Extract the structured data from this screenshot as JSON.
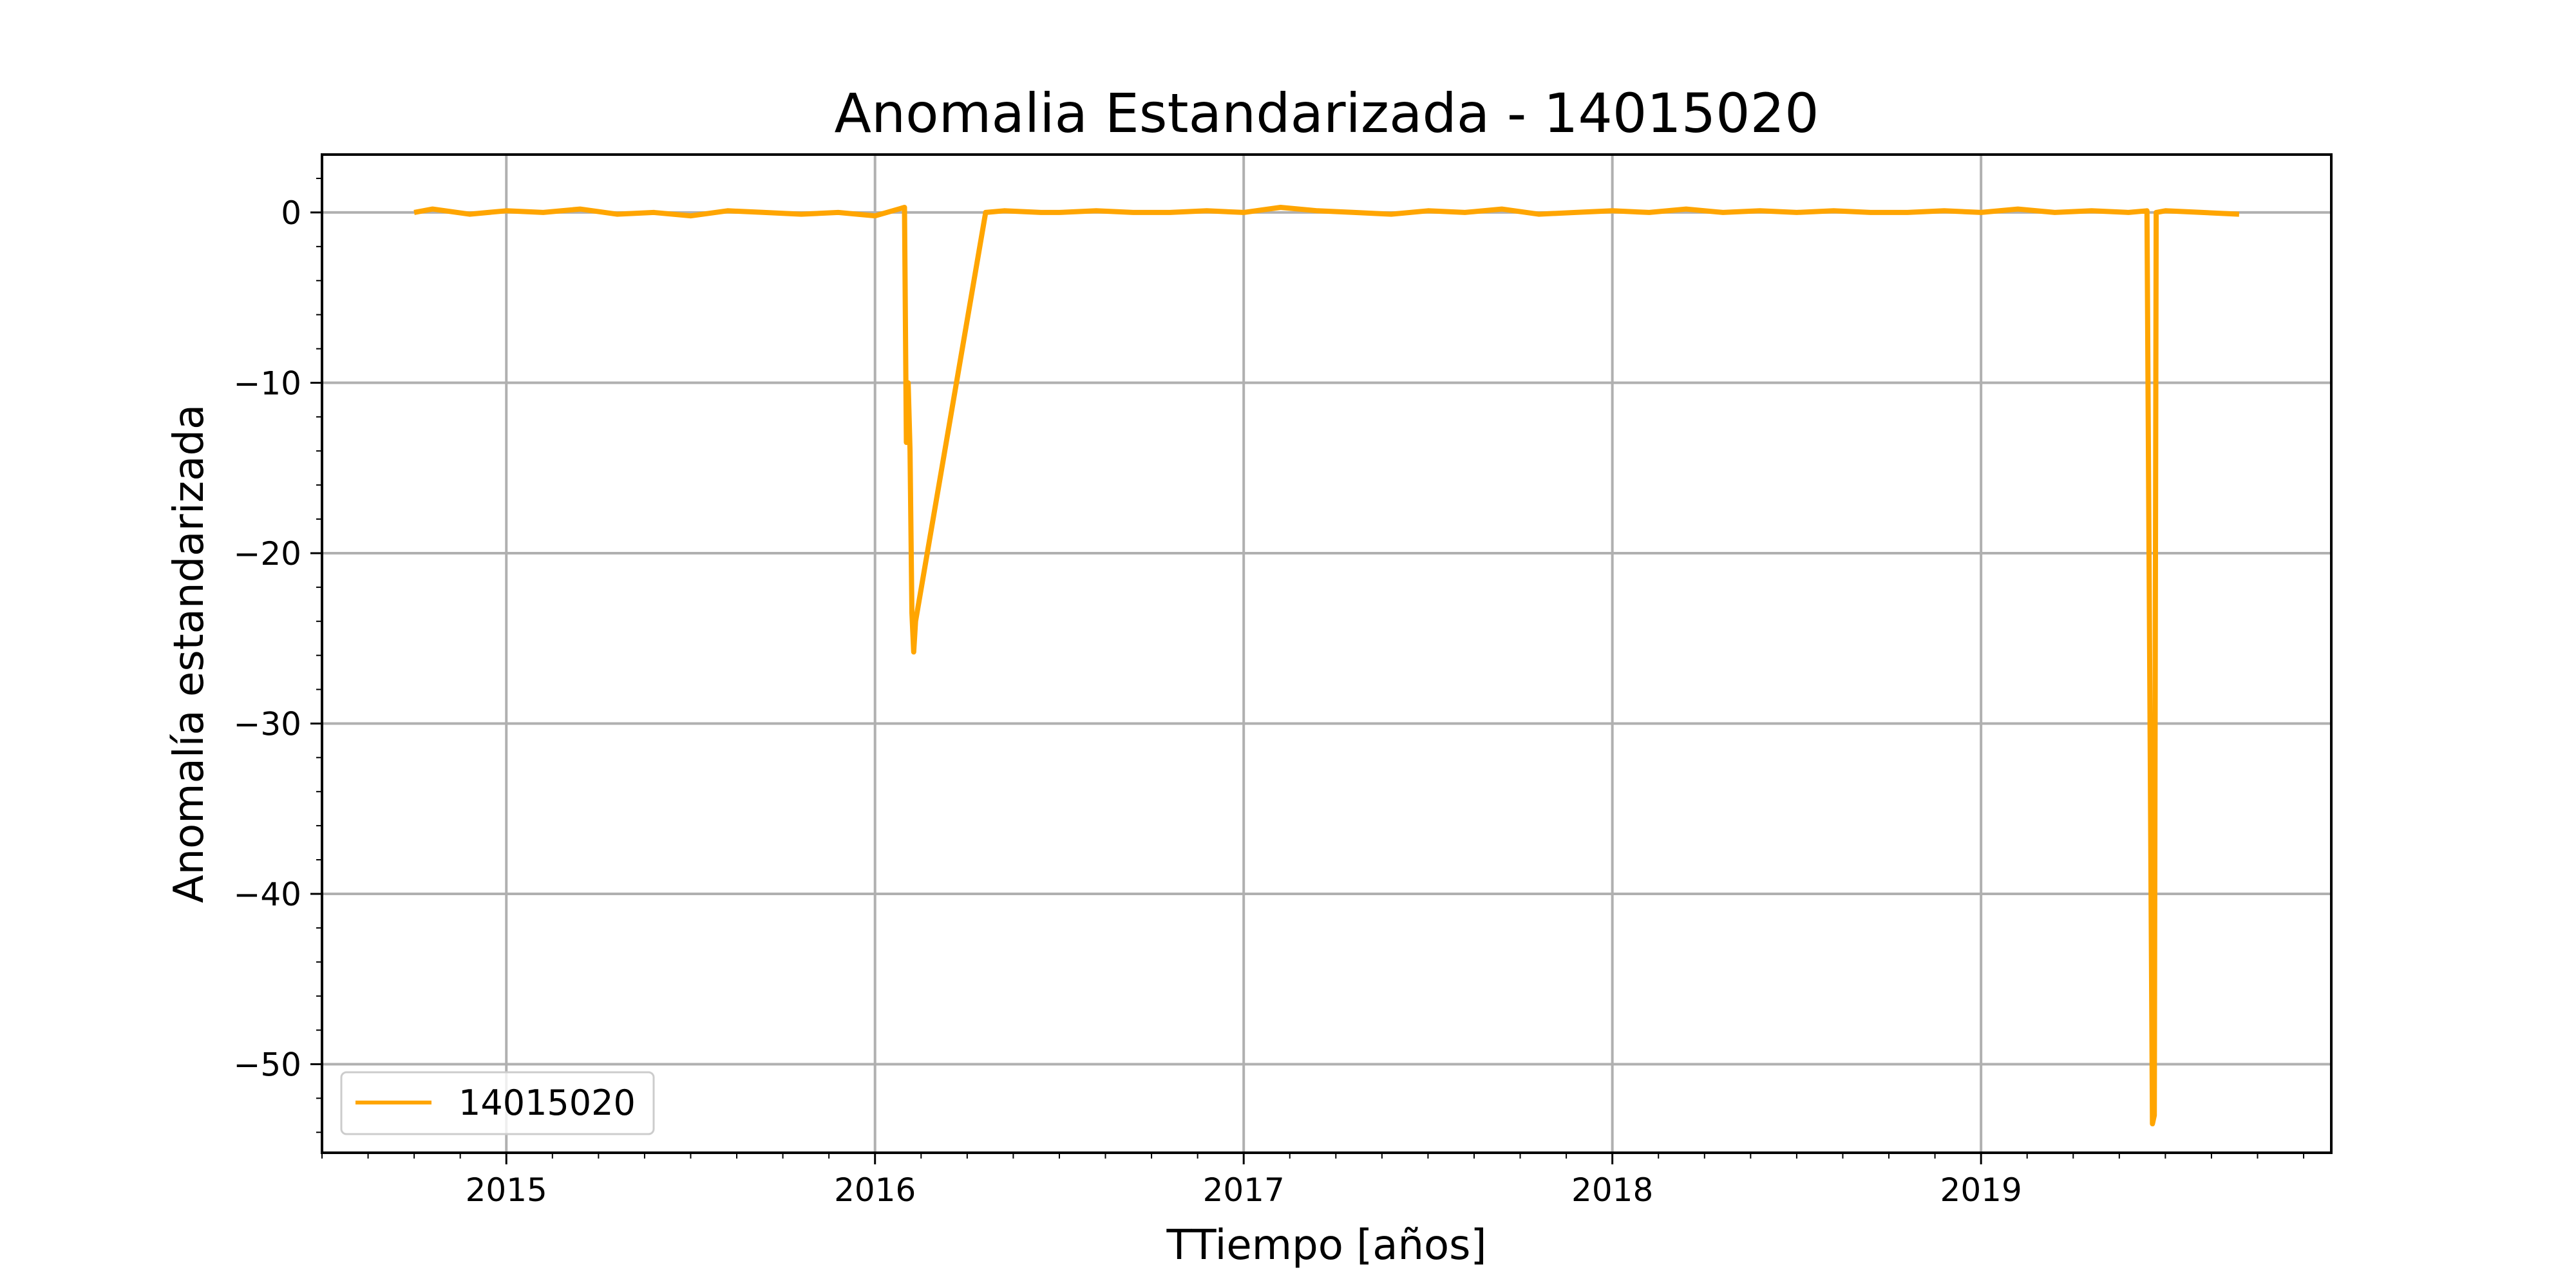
{
  "chart_data": {
    "type": "line",
    "title": "Anomalia Estandarizada - 14015020",
    "xlabel": "TTiempo [años]",
    "ylabel": "Anomalía estandarizada",
    "xlim": [
      2014.5,
      2019.95
    ],
    "ylim": [
      -55.2,
      3.4
    ],
    "x_ticks": [
      2015,
      2016,
      2017,
      2018,
      2019
    ],
    "x_tick_labels": [
      "2015",
      "2016",
      "2017",
      "2018",
      "2019"
    ],
    "y_ticks": [
      0,
      -10,
      -20,
      -30,
      -40,
      -50
    ],
    "y_tick_labels": [
      "0",
      "−10",
      "−20",
      "−30",
      "−40",
      "−50"
    ],
    "grid": true,
    "legend": {
      "placement": "lower-left"
    },
    "series": [
      {
        "name": "14015020",
        "color": "#FFA500",
        "x": [
          2014.75,
          2014.8,
          2014.9,
          2015.0,
          2015.1,
          2015.2,
          2015.3,
          2015.4,
          2015.5,
          2015.6,
          2015.7,
          2015.8,
          2015.9,
          2016.0,
          2016.08,
          2016.085,
          2016.09,
          2016.095,
          2016.1,
          2016.105,
          2016.11,
          2016.3,
          2016.35,
          2016.45,
          2016.5,
          2016.6,
          2016.7,
          2016.8,
          2016.9,
          2017.0,
          2017.1,
          2017.2,
          2017.3,
          2017.4,
          2017.5,
          2017.6,
          2017.7,
          2017.8,
          2017.9,
          2018.0,
          2018.1,
          2018.2,
          2018.3,
          2018.4,
          2018.5,
          2018.6,
          2018.7,
          2018.8,
          2018.9,
          2019.0,
          2019.1,
          2019.2,
          2019.3,
          2019.4,
          2019.45,
          2019.465,
          2019.47,
          2019.475,
          2019.5,
          2019.6,
          2019.7
        ],
        "y": [
          0.0,
          0.2,
          -0.1,
          0.1,
          0.0,
          0.2,
          -0.1,
          0.0,
          -0.2,
          0.1,
          0.0,
          -0.1,
          0.0,
          -0.2,
          0.3,
          -13.5,
          -10.0,
          -14.0,
          -23.5,
          -25.8,
          -24.0,
          0.0,
          0.1,
          0.0,
          0.0,
          0.1,
          0.0,
          0.0,
          0.1,
          0.0,
          0.3,
          0.1,
          0.0,
          -0.1,
          0.1,
          0.0,
          0.2,
          -0.1,
          0.0,
          0.1,
          0.0,
          0.2,
          0.0,
          0.1,
          0.0,
          0.1,
          0.0,
          0.0,
          0.1,
          0.0,
          0.2,
          0.0,
          0.1,
          0.0,
          0.1,
          -53.5,
          -53.0,
          0.0,
          0.1,
          0.0,
          -0.1
        ]
      }
    ]
  }
}
